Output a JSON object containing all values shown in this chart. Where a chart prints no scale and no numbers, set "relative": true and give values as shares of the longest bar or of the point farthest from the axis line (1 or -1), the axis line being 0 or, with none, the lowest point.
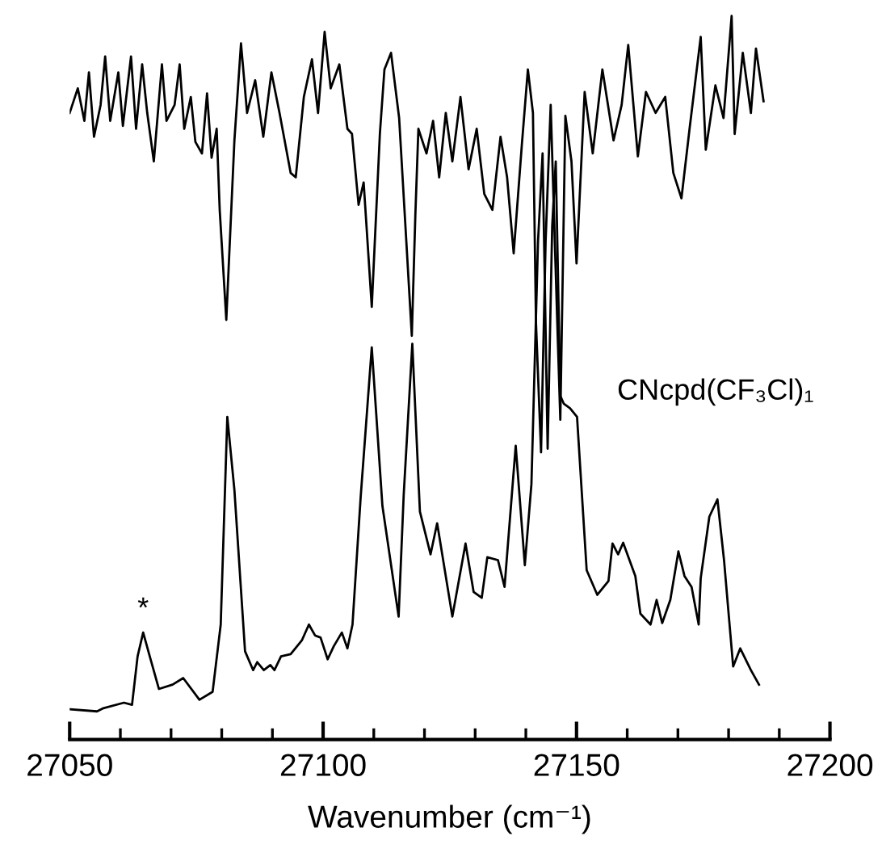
{
  "chart_data": {
    "type": "line",
    "relative": true,
    "xlabel": "Wavenumber (cm⁻¹)",
    "xlim": [
      27050,
      27200
    ],
    "xticks": [
      27050,
      {
        "value": 27060,
        "label": null
      },
      {
        "value": 27070,
        "label": null
      },
      {
        "value": 27080,
        "label": null
      },
      {
        "value": 27090,
        "label": null
      },
      27100,
      {
        "value": 27110,
        "label": null
      },
      {
        "value": 27120,
        "label": null
      },
      {
        "value": 27130,
        "label": null
      },
      {
        "value": 27140,
        "label": null
      },
      27150,
      {
        "value": 27160,
        "label": null
      },
      {
        "value": 27170,
        "label": null
      },
      {
        "value": 27180,
        "label": null
      },
      {
        "value": 27190,
        "label": null
      },
      27200
    ],
    "tick_labels": "x",
    "grid": false,
    "legend": false,
    "marker": "none",
    "line_style": "solid",
    "annotations": [
      {
        "text": "*",
        "x": 27064.5,
        "y": 0.148
      }
    ],
    "series": [
      {
        "color": "#000000",
        "x": [
          27050.0,
          27051.6,
          27052.9,
          27053.8,
          27054.8,
          27056.1,
          27057.0,
          27058.0,
          27059.6,
          27060.5,
          27062.1,
          27063.1,
          27064.3,
          27065.3,
          27066.6,
          27068.2,
          27069.1,
          27070.7,
          27071.7,
          27072.6,
          27073.9,
          27074.8,
          27076.1,
          27077.1,
          27078.0,
          27079.0,
          27079.6,
          27080.9,
          27082.5,
          27083.8,
          27085.0,
          27086.6,
          27088.2,
          27089.8,
          27091.4,
          27093.6,
          27094.6,
          27096.2,
          27097.8,
          27099.0,
          27100.3,
          27101.5,
          27103.2,
          27104.8,
          27105.7,
          27107.0,
          27108.0,
          27109.6,
          27111.2,
          27112.1,
          27113.4,
          27115.0,
          27117.5,
          27118.2,
          27118.8,
          27120.4,
          27121.7,
          27122.9,
          27124.2,
          27125.5,
          27127.1,
          27128.7,
          27130.3,
          27131.8,
          27133.4,
          27135.0,
          27136.3,
          27137.6,
          27139.2,
          27140.4,
          27141.4,
          27142.0,
          27143.0,
          27143.9,
          27144.9,
          27146.2,
          27146.8,
          27147.8,
          27149.0,
          27150.0,
          27151.6,
          27153.2,
          27155.1,
          27157.3,
          27158.9,
          27160.2,
          27162.1,
          27163.7,
          27165.6,
          27167.5,
          27169.1,
          27170.7,
          27172.3,
          27174.5,
          27175.5,
          27177.4,
          27179.0,
          27180.6,
          27181.2,
          27182.8,
          27184.4,
          27185.4,
          27186.9
        ],
        "values": [
          0.866,
          0.9,
          0.855,
          0.922,
          0.833,
          0.877,
          0.944,
          0.855,
          0.922,
          0.848,
          0.944,
          0.844,
          0.933,
          0.866,
          0.799,
          0.933,
          0.855,
          0.877,
          0.933,
          0.844,
          0.888,
          0.826,
          0.81,
          0.893,
          0.804,
          0.844,
          0.732,
          0.58,
          0.828,
          0.962,
          0.866,
          0.911,
          0.833,
          0.922,
          0.866,
          0.783,
          0.777,
          0.888,
          0.94,
          0.866,
          0.978,
          0.9,
          0.933,
          0.844,
          0.837,
          0.739,
          0.77,
          0.598,
          0.837,
          0.926,
          0.949,
          0.859,
          0.558,
          0.725,
          0.844,
          0.81,
          0.855,
          0.777,
          0.866,
          0.799,
          0.888,
          0.788,
          0.844,
          0.754,
          0.732,
          0.833,
          0.777,
          0.672,
          0.821,
          0.926,
          0.866,
          0.576,
          0.397,
          0.688,
          0.877,
          0.576,
          0.442,
          0.862,
          0.799,
          0.658,
          0.895,
          0.81,
          0.926,
          0.828,
          0.877,
          0.96,
          0.806,
          0.895,
          0.866,
          0.888,
          0.783,
          0.748,
          0.844,
          0.971,
          0.815,
          0.904,
          0.859,
          1.0,
          0.837,
          0.949,
          0.866,
          0.955,
          0.882
        ]
      },
      {
        "name": "CNcpd(CF₃Cl)₁",
        "color": "#000000",
        "x": [
          27050.1,
          27055.4,
          27056.5,
          27060.7,
          27062.3,
          27063.4,
          27064.5,
          27065.8,
          27067.6,
          27070.3,
          27072.4,
          27075.6,
          27078.2,
          27079.8,
          27081.1,
          27082.5,
          27084.6,
          27086.2,
          27087.0,
          27088.3,
          27089.6,
          27090.4,
          27091.7,
          27093.6,
          27095.8,
          27097.2,
          27098.4,
          27099.5,
          27100.9,
          27102.1,
          27103.7,
          27104.8,
          27105.8,
          27107.4,
          27109.6,
          27111.7,
          27114.9,
          27115.9,
          27117.6,
          27119.1,
          27121.2,
          27122.5,
          27125.5,
          27128.1,
          27129.7,
          27131.3,
          27132.4,
          27134.5,
          27135.8,
          27138.0,
          27139.8,
          27141.1,
          27142.4,
          27143.3,
          27144.3,
          27145.2,
          27145.9,
          27146.8,
          27147.5,
          27148.7,
          27150.1,
          27152.0,
          27154.1,
          27156.3,
          27157.1,
          27158.2,
          27159.2,
          27161.6,
          27162.6,
          27164.6,
          27165.8,
          27166.9,
          27168.5,
          27170.1,
          27171.3,
          27172.7,
          27174.1,
          27174.5,
          27176.2,
          27177.8,
          27179.1,
          27180.9,
          27182.3,
          27184.4,
          27186.0
        ],
        "values": [
          0.042,
          0.039,
          0.043,
          0.051,
          0.048,
          0.115,
          0.148,
          0.115,
          0.07,
          0.076,
          0.085,
          0.055,
          0.066,
          0.159,
          0.446,
          0.345,
          0.122,
          0.096,
          0.107,
          0.096,
          0.103,
          0.096,
          0.115,
          0.118,
          0.137,
          0.159,
          0.144,
          0.141,
          0.111,
          0.129,
          0.148,
          0.126,
          0.159,
          0.334,
          0.542,
          0.323,
          0.17,
          0.338,
          0.547,
          0.315,
          0.256,
          0.299,
          0.17,
          0.271,
          0.204,
          0.196,
          0.252,
          0.248,
          0.211,
          0.406,
          0.241,
          0.353,
          0.688,
          0.81,
          0.402,
          0.71,
          0.799,
          0.475,
          0.464,
          0.458,
          0.446,
          0.234,
          0.2,
          0.219,
          0.271,
          0.256,
          0.272,
          0.226,
          0.174,
          0.159,
          0.193,
          0.161,
          0.193,
          0.26,
          0.226,
          0.211,
          0.159,
          0.223,
          0.308,
          0.332,
          0.248,
          0.101,
          0.126,
          0.096,
          0.076
        ]
      }
    ]
  }
}
